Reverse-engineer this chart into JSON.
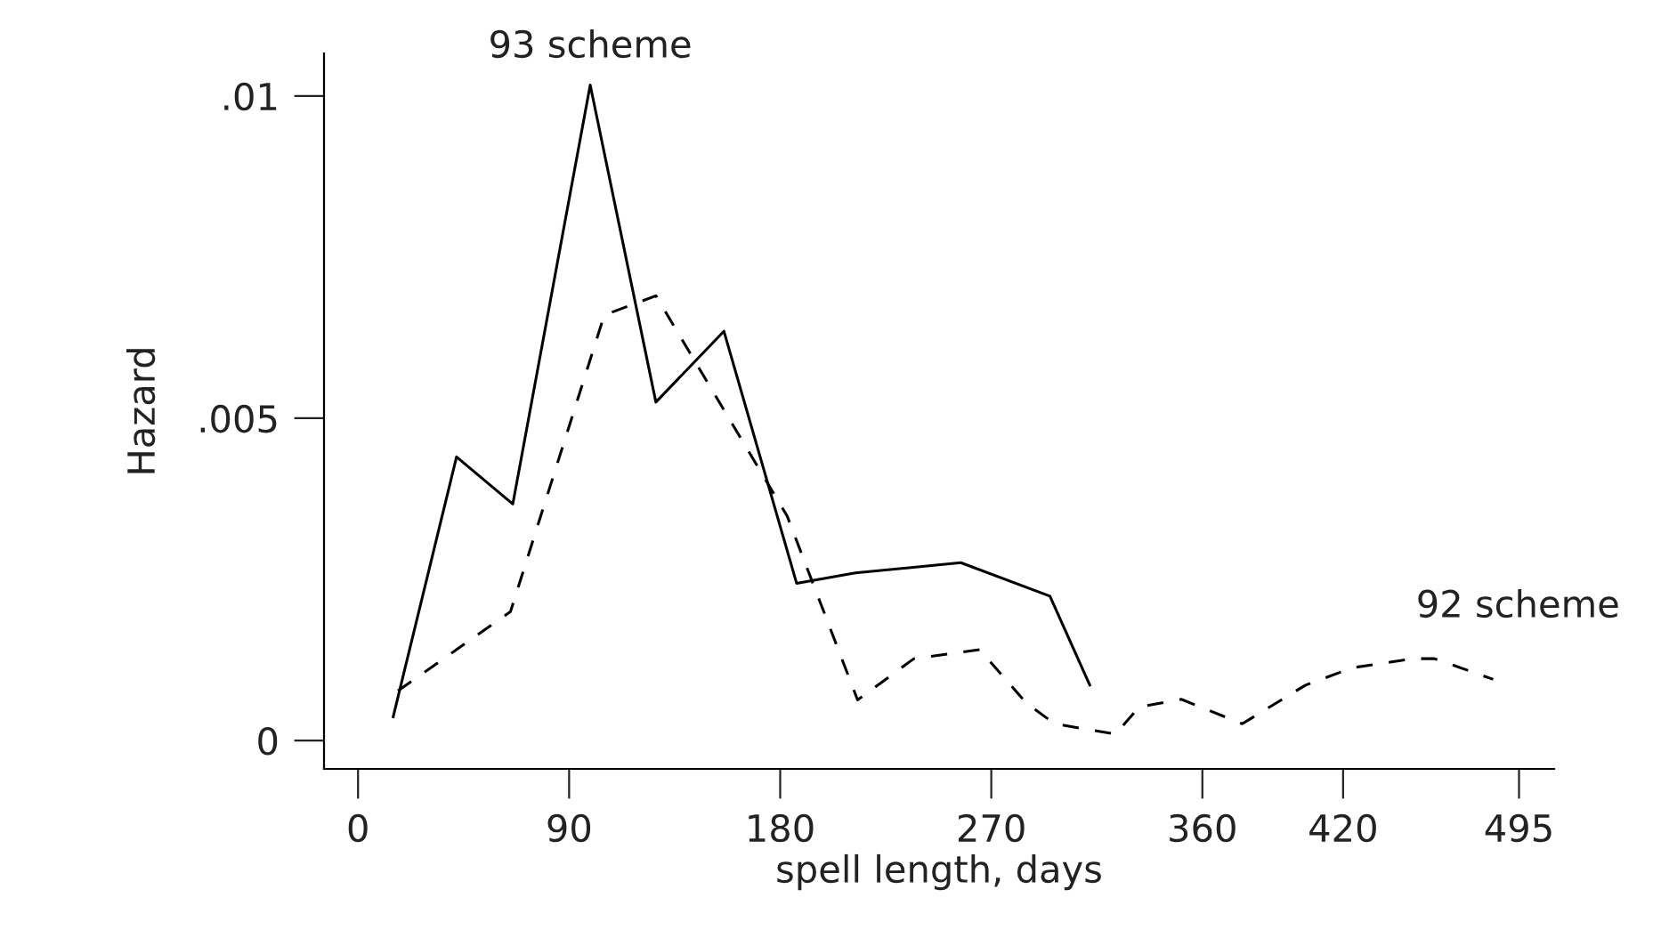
{
  "chart_data": {
    "type": "line",
    "xlabel": "spell length, days",
    "ylabel": "Hazard",
    "xlim": [
      -14.5,
      510
    ],
    "xticks": [
      0,
      90,
      180,
      270,
      360,
      420,
      495
    ],
    "ylim": [
      -0.00044,
      0.01066
    ],
    "yticks": [
      {
        "value": 0,
        "label": "0"
      },
      {
        "value": 0.005,
        "label": ".005"
      },
      {
        "value": 0.01,
        "label": ".01"
      }
    ],
    "grid": false,
    "legend": false,
    "marker": "none",
    "series": [
      {
        "name": "93 scheme",
        "color": "#000000",
        "line_style": "solid",
        "x": [
          15,
          42,
          66,
          99,
          127,
          156,
          187,
          212,
          257,
          295,
          312
        ],
        "values": [
          0.00037,
          0.0044,
          0.00367,
          0.01017,
          0.00525,
          0.00635,
          0.00244,
          0.0026,
          0.00276,
          0.00224,
          0.00086
        ]
      },
      {
        "name": "92 scheme",
        "color": "#000000",
        "line_style": "dashed",
        "x": [
          17,
          65,
          105,
          127,
          183,
          213,
          237,
          265,
          285,
          297,
          323,
          333,
          351,
          377,
          404,
          424,
          450,
          459,
          484
        ],
        "values": [
          0.00077,
          0.002,
          0.0066,
          0.0069,
          0.00348,
          0.00063,
          0.00127,
          0.00141,
          0.00058,
          0.00026,
          0.0001,
          0.00052,
          0.00064,
          0.00026,
          0.00086,
          0.00113,
          0.00127,
          0.00127,
          0.00095
        ]
      }
    ]
  }
}
